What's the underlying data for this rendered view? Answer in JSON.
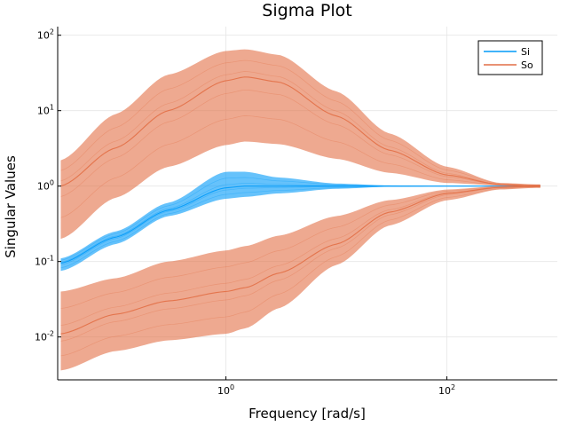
{
  "chart_data": {
    "type": "line",
    "title": "Sigma Plot",
    "xlabel": "Frequency [rad/s]",
    "ylabel": "Singular Values",
    "x_scale": "log",
    "y_scale": "log",
    "xlim": [
      0.03,
      1000
    ],
    "ylim": [
      0.0027,
      130
    ],
    "x_ticks": [
      {
        "base": "10",
        "exp": "0",
        "value": 1
      },
      {
        "base": "10",
        "exp": "2",
        "value": 100
      }
    ],
    "y_ticks": [
      {
        "base": "10",
        "exp": "-2",
        "value": 0.01
      },
      {
        "base": "10",
        "exp": "-1",
        "value": 0.1
      },
      {
        "base": "10",
        "exp": "0",
        "value": 1
      },
      {
        "base": "10",
        "exp": "1",
        "value": 10
      },
      {
        "base": "10",
        "exp": "2",
        "value": 100
      }
    ],
    "grid": true,
    "legend_position": "top-right",
    "x": [
      0.032,
      0.1,
      0.3,
      1,
      1.5,
      3,
      10,
      30,
      100,
      300,
      700
    ],
    "series": [
      {
        "name": "Si",
        "color": "#009af9",
        "bands": [
          {
            "upper": [
              0.11,
              0.25,
              0.6,
              1.55,
              1.55,
              1.3,
              1.08,
              1.02,
              1.0,
              1.0,
              1.0
            ],
            "lower": [
              0.075,
              0.17,
              0.4,
              0.68,
              0.72,
              0.8,
              0.92,
              0.98,
              0.99,
              1.0,
              1.0
            ],
            "center": [
              0.095,
              0.21,
              0.48,
              0.95,
              1.0,
              1.0,
              1.0,
              1.0,
              1.0,
              1.0,
              1.0
            ]
          }
        ]
      },
      {
        "name": "So",
        "color": "#e26f46",
        "bands": [
          {
            "upper": [
              2.2,
              9,
              30,
              62,
              65,
              55,
              18,
              5,
              1.8,
              1.1,
              1.05
            ],
            "lower": [
              0.2,
              0.7,
              1.8,
              3.5,
              3.9,
              3.6,
              2.3,
              1.5,
              1.1,
              1.02,
              0.95
            ],
            "center": [
              1.0,
              3.2,
              10,
              25,
              28,
              24,
              8.5,
              3,
              1.4,
              1.05,
              1.0
            ]
          },
          {
            "upper": [
              0.04,
              0.06,
              0.1,
              0.14,
              0.16,
              0.22,
              0.4,
              0.65,
              0.9,
              1.0,
              1.05
            ],
            "lower": [
              0.0036,
              0.0065,
              0.009,
              0.011,
              0.013,
              0.024,
              0.09,
              0.3,
              0.65,
              0.9,
              0.95
            ],
            "center": [
              0.011,
              0.02,
              0.03,
              0.04,
              0.045,
              0.07,
              0.17,
              0.45,
              0.8,
              0.96,
              1.0
            ]
          }
        ]
      }
    ]
  }
}
